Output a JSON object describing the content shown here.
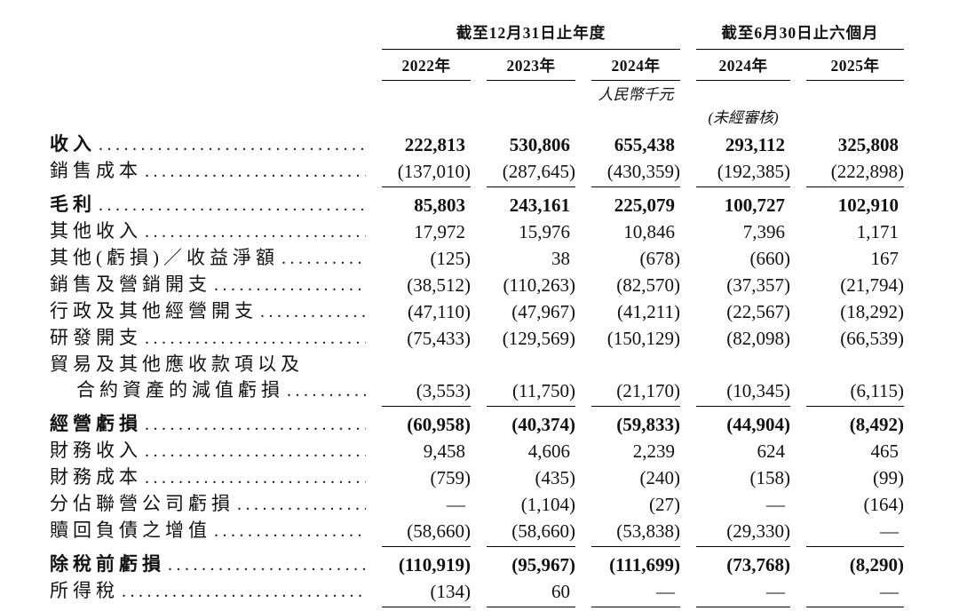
{
  "table": {
    "col_groups": [
      {
        "title": "截至12月31日止年度",
        "cols": [
          "2022年",
          "2023年",
          "2024年"
        ]
      },
      {
        "title": "截至6月30日止六個月",
        "cols": [
          "2024年",
          "2025年"
        ]
      }
    ],
    "unit_note": "人民幣千元",
    "unaudited_note": "(未經審核)",
    "rows": [
      {
        "label": "收入",
        "bold": true,
        "values": [
          "222,813",
          "530,806",
          "655,438",
          "293,112",
          "325,808"
        ]
      },
      {
        "label": "銷售成本",
        "rule_below": true,
        "values": [
          "(137,010)",
          "(287,645)",
          "(430,359)",
          "(192,385)",
          "(222,898)"
        ]
      },
      {
        "label": "毛利",
        "bold": true,
        "values": [
          "85,803",
          "243,161",
          "225,079",
          "100,727",
          "102,910"
        ]
      },
      {
        "label": "其他收入",
        "values": [
          "17,972",
          "15,976",
          "10,846",
          "7,396",
          "1,171"
        ]
      },
      {
        "label": "其他(虧損)／收益淨額",
        "values": [
          "(125)",
          "38",
          "(678)",
          "(660)",
          "167"
        ]
      },
      {
        "label": "銷售及營銷開支",
        "values": [
          "(38,512)",
          "(110,263)",
          "(82,570)",
          "(37,357)",
          "(21,794)"
        ]
      },
      {
        "label": "行政及其他經營開支",
        "values": [
          "(47,110)",
          "(47,967)",
          "(41,211)",
          "(22,567)",
          "(18,292)"
        ]
      },
      {
        "label": "研發開支",
        "values": [
          "(75,433)",
          "(129,569)",
          "(150,129)",
          "(82,098)",
          "(66,539)"
        ]
      },
      {
        "label": "貿易及其他應收款項以及",
        "label2": "合約資產的減值虧損",
        "rule_below": true,
        "values": [
          "(3,553)",
          "(11,750)",
          "(21,170)",
          "(10,345)",
          "(6,115)"
        ]
      },
      {
        "label": "經營虧損",
        "bold": true,
        "values": [
          "(60,958)",
          "(40,374)",
          "(59,833)",
          "(44,904)",
          "(8,492)"
        ]
      },
      {
        "label": "財務收入",
        "values": [
          "9,458",
          "4,606",
          "2,239",
          "624",
          "465"
        ]
      },
      {
        "label": "財務成本",
        "values": [
          "(759)",
          "(435)",
          "(240)",
          "(158)",
          "(99)"
        ]
      },
      {
        "label": "分佔聯營公司虧損",
        "values": [
          "—",
          "(1,104)",
          "(27)",
          "—",
          "(164)"
        ]
      },
      {
        "label": "贖回負債之增值",
        "rule_below": true,
        "values": [
          "(58,660)",
          "(58,660)",
          "(53,838)",
          "(29,330)",
          "—"
        ]
      },
      {
        "label": "除稅前虧損",
        "bold": true,
        "values": [
          "(110,919)",
          "(95,967)",
          "(111,699)",
          "(73,768)",
          "(8,290)"
        ]
      },
      {
        "label": "所得稅",
        "rule_below": true,
        "values": [
          "(134)",
          "60",
          "—",
          "—",
          "—"
        ]
      }
    ]
  }
}
